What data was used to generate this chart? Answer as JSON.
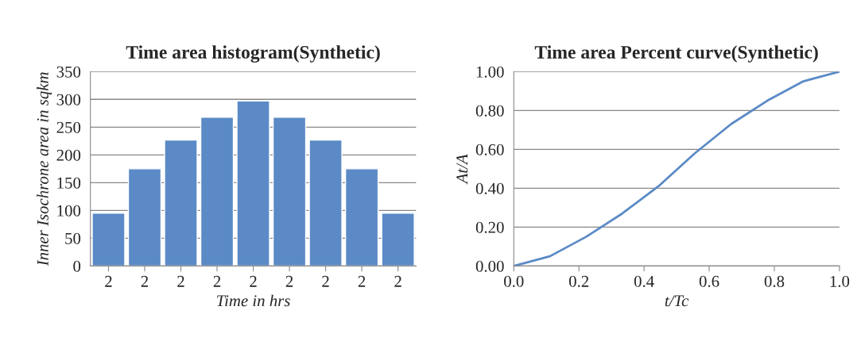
{
  "chart_data": [
    {
      "type": "bar",
      "title": "Time area histogram(Synthetic)",
      "xlabel": "Time in hrs",
      "ylabel": "Inner Isochrone area in sqkm",
      "categories": [
        "2",
        "2",
        "2",
        "2",
        "2",
        "2",
        "2",
        "2",
        "2"
      ],
      "series": [
        {
          "color": "#5b8ac6",
          "values": [
            95,
            175,
            227,
            268,
            297,
            268,
            227,
            175,
            95
          ]
        }
      ],
      "ylim": [
        0,
        350
      ],
      "yticks": [
        0,
        50,
        100,
        150,
        200,
        250,
        300,
        350
      ],
      "grid": "y",
      "legend": false
    },
    {
      "type": "line",
      "title": "Time area Percent curve(Synthetic)",
      "xlabel": "t/Tc",
      "ylabel": "At/A",
      "series": [
        {
          "color": "#5b8ac6",
          "x": [
            0,
            0.111,
            0.222,
            0.333,
            0.444,
            0.556,
            0.667,
            0.778,
            0.889,
            1.0
          ],
          "values": [
            0,
            0.05,
            0.15,
            0.27,
            0.41,
            0.58,
            0.73,
            0.85,
            0.95,
            1.0
          ]
        }
      ],
      "xlim": [
        0,
        1
      ],
      "xticks": [
        {
          "value": 0,
          "label": "0.0"
        },
        {
          "value": 0.2,
          "label": "0.2"
        },
        {
          "value": 0.4,
          "label": "0.4"
        },
        {
          "value": 0.6,
          "label": "0.6"
        },
        {
          "value": 0.8,
          "label": "0.8"
        },
        {
          "value": 1,
          "label": "1.0"
        }
      ],
      "ylim": [
        0,
        1
      ],
      "yticks": [
        {
          "value": 0,
          "label": "0.00"
        },
        {
          "value": 0.2,
          "label": "0.20"
        },
        {
          "value": 0.4,
          "label": "0.40"
        },
        {
          "value": 0.6,
          "label": "0.60"
        },
        {
          "value": 0.8,
          "label": "0.80"
        },
        {
          "value": 1,
          "label": "1.00"
        }
      ],
      "grid": "y",
      "legend": false,
      "marker": "none",
      "line_style": "solid"
    }
  ]
}
